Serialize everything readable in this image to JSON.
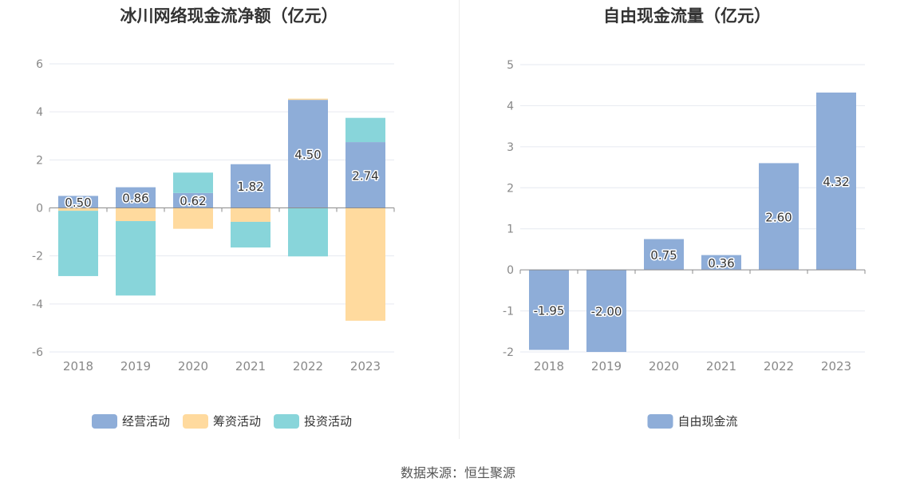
{
  "footer": {
    "source": "数据来源：恒生聚源"
  },
  "colors": {
    "operating": "#8eadd8",
    "financing": "#ffda9e",
    "investing": "#88d5da",
    "free_cash_flow": "#8eadd8"
  },
  "chart_data": [
    {
      "type": "bar",
      "stacked": true,
      "title": "冰川网络现金流净额（亿元）",
      "categories": [
        "2018",
        "2019",
        "2020",
        "2021",
        "2022",
        "2023"
      ],
      "series": [
        {
          "name": "经营活动",
          "values": [
            0.5,
            0.86,
            0.62,
            1.82,
            4.5,
            2.74
          ],
          "labels": [
            "0.50",
            "0.86",
            "0.62",
            "1.82",
            "4.50",
            "2.74"
          ]
        },
        {
          "name": "筹资活动",
          "values": [
            -0.12,
            -0.55,
            -0.87,
            -0.58,
            0.05,
            -4.7
          ]
        },
        {
          "name": "投资活动",
          "values": [
            -2.72,
            -3.1,
            0.85,
            -1.07,
            -2.02,
            1.01
          ]
        }
      ],
      "ylim": [
        -6,
        6
      ],
      "yticks": [
        "-6",
        "-4",
        "-2",
        "0",
        "2",
        "4",
        "6"
      ],
      "legend": "bottom-center",
      "grid": true
    },
    {
      "type": "bar",
      "title": "自由现金流量（亿元）",
      "categories": [
        "2018",
        "2019",
        "2020",
        "2021",
        "2022",
        "2023"
      ],
      "series": [
        {
          "name": "自由现金流",
          "values": [
            -1.95,
            -2.0,
            0.75,
            0.36,
            2.6,
            4.32
          ],
          "labels": [
            "-1.95",
            "-2.00",
            "0.75",
            "0.36",
            "2.60",
            "4.32"
          ]
        }
      ],
      "ylim": [
        -2,
        5
      ],
      "yticks": [
        "-2",
        "-1",
        "0",
        "1",
        "2",
        "3",
        "4",
        "5"
      ],
      "legend": "bottom-center",
      "grid": true
    }
  ]
}
